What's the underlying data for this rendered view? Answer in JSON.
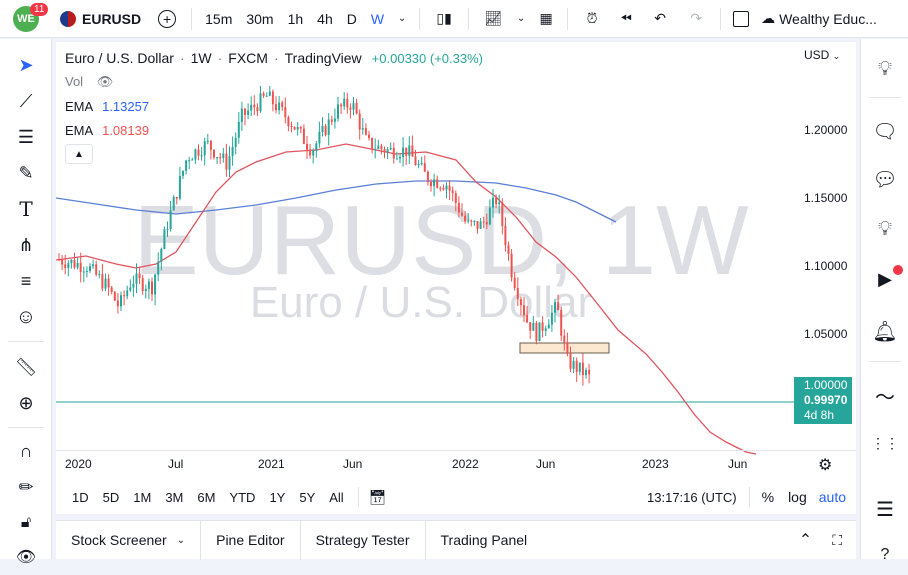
{
  "topbar": {
    "notification_count": "11",
    "symbol": "EURUSD",
    "intervals": [
      "15m",
      "30m",
      "1h",
      "4h",
      "D",
      "W"
    ],
    "active_interval": "W",
    "account_name": "Wealthy Educ..."
  },
  "legend": {
    "title": "Euro / U.S. Dollar",
    "interval": "1W",
    "source": "FXCM",
    "platform": "TradingView",
    "change": "+0.00330 (+0.33%)",
    "vol_label": "Vol",
    "ema1_label": "EMA",
    "ema1_value": "1.13257",
    "ema2_label": "EMA",
    "ema2_value": "1.08139"
  },
  "watermark": {
    "line1": "EURUSD, 1W",
    "line2": "Euro / U.S. Dollar"
  },
  "price_axis": {
    "currency": "USD",
    "ticks": [
      "1.20000",
      "1.15000",
      "1.10000",
      "1.05000",
      "1.00000"
    ],
    "current_price": "0.99970",
    "countdown": "4d 8h",
    "highlight_level": "1.00000"
  },
  "time_axis": {
    "ticks": [
      "2020",
      "Jul",
      "2021",
      "Jun",
      "2022",
      "Jun",
      "2023",
      "Jun"
    ]
  },
  "range_bar": {
    "ranges": [
      "1D",
      "5D",
      "1M",
      "3M",
      "6M",
      "YTD",
      "1Y",
      "5Y",
      "All"
    ],
    "clock": "13:17:16 (UTC)",
    "percent_label": "%",
    "log_label": "log",
    "auto_label": "auto"
  },
  "bottom_panel": {
    "tabs": [
      "Stock Screener",
      "Pine Editor",
      "Strategy Tester",
      "Trading Panel"
    ]
  },
  "colors": {
    "up": "#26a69a",
    "down": "#ef5350",
    "ema_fast": "#ef5350",
    "ema_slow": "#2962ff",
    "price_line": "#26a69a",
    "accent": "#2962ff"
  }
}
